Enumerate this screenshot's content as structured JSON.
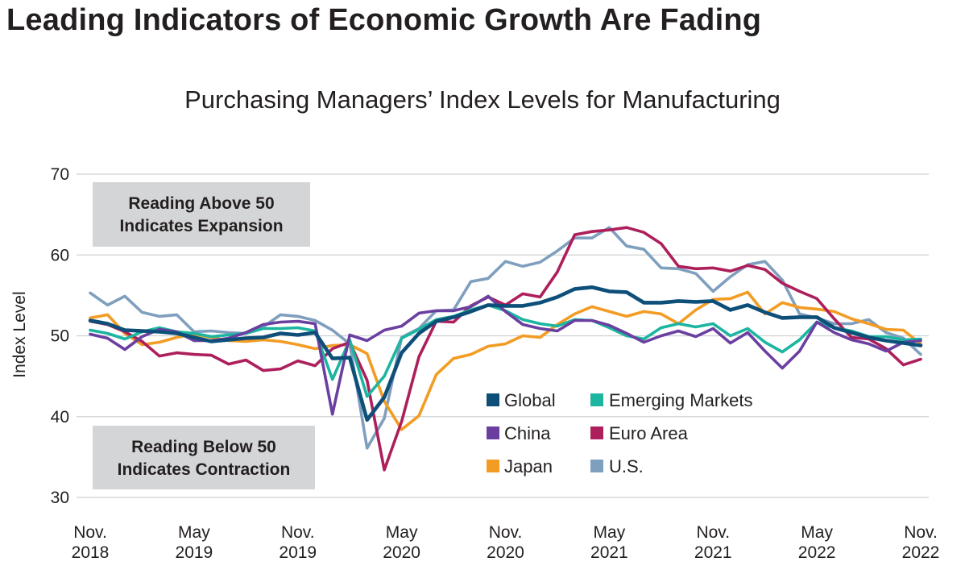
{
  "headline": "Leading Indicators of Economic Growth Are Fading",
  "chart_data": {
    "type": "line",
    "title": "Purchasing Managers’ Index Levels for Manufacturing",
    "xlabel": "",
    "ylabel": "Index Level",
    "ylim": [
      30,
      70
    ],
    "yticks": [
      30,
      40,
      50,
      60,
      70
    ],
    "grid": true,
    "x_tick_labels": [
      {
        "index": 0,
        "line1": "Nov.",
        "line2": "2018"
      },
      {
        "index": 6,
        "line1": "May",
        "line2": "2019"
      },
      {
        "index": 12,
        "line1": "Nov.",
        "line2": "2019"
      },
      {
        "index": 18,
        "line1": "May",
        "line2": "2020"
      },
      {
        "index": 24,
        "line1": "Nov.",
        "line2": "2020"
      },
      {
        "index": 30,
        "line1": "May",
        "line2": "2021"
      },
      {
        "index": 36,
        "line1": "Nov.",
        "line2": "2021"
      },
      {
        "index": 42,
        "line1": "May",
        "line2": "2022"
      },
      {
        "index": 48,
        "line1": "Nov.",
        "line2": "2022"
      }
    ],
    "annotations": {
      "above": [
        "Reading Above 50",
        "Indicates Expansion"
      ],
      "below": [
        "Reading Below 50",
        "Indicates Contraction"
      ]
    },
    "legend_position": "lower-center",
    "series": [
      {
        "name": "Global",
        "color": "#0e4f7a",
        "values": [
          51.9,
          51.5,
          50.7,
          50.6,
          50.5,
          50.3,
          49.8,
          49.3,
          49.5,
          49.7,
          49.8,
          50.3,
          50.1,
          50.4,
          47.2,
          47.3,
          39.6,
          42.4,
          47.9,
          50.3,
          51.8,
          52.3,
          53.0,
          53.8,
          53.7,
          53.7,
          54.1,
          54.8,
          55.8,
          56.0,
          55.5,
          55.4,
          54.1,
          54.1,
          54.3,
          54.2,
          54.3,
          53.2,
          53.8,
          52.9,
          52.2,
          52.3,
          52.3,
          51.0,
          50.4,
          49.8,
          49.4,
          49.1,
          48.8
        ]
      },
      {
        "name": "Emerging Markets",
        "color": "#1cb5a0",
        "values": [
          50.7,
          50.3,
          49.6,
          50.5,
          51.0,
          50.5,
          50.3,
          49.9,
          50.1,
          50.3,
          50.9,
          50.9,
          51.0,
          50.6,
          44.6,
          49.5,
          42.5,
          45.0,
          49.7,
          50.8,
          52.0,
          52.4,
          53.2,
          53.8,
          53.1,
          52.0,
          51.5,
          51.2,
          52.0,
          51.9,
          51.0,
          50.0,
          49.6,
          51.0,
          51.5,
          51.1,
          51.5,
          50.0,
          50.9,
          49.2,
          48.0,
          49.5,
          51.7,
          51.0,
          50.6,
          49.9,
          49.9,
          49.5,
          49.6
        ]
      },
      {
        "name": "China",
        "color": "#6b3fa0",
        "values": [
          50.2,
          49.7,
          48.3,
          49.9,
          50.8,
          50.5,
          49.4,
          49.4,
          49.7,
          50.4,
          51.4,
          51.7,
          51.8,
          51.5,
          40.3,
          50.1,
          49.4,
          50.7,
          51.2,
          52.8,
          53.1,
          53.1,
          53.6,
          54.9,
          53.0,
          51.4,
          50.9,
          50.6,
          51.9,
          51.9,
          51.3,
          50.3,
          49.2,
          50.0,
          50.6,
          49.9,
          50.9,
          49.1,
          50.4,
          48.1,
          46.0,
          48.1,
          51.7,
          50.4,
          49.5,
          49.0,
          48.1,
          49.2,
          49.4
        ]
      },
      {
        "name": "Euro Area",
        "color": "#ad1f5b",
        "values": [
          51.8,
          51.4,
          50.5,
          49.3,
          47.5,
          47.9,
          47.7,
          47.6,
          46.5,
          47.0,
          45.7,
          45.9,
          46.9,
          46.3,
          48.4,
          49.2,
          44.5,
          33.4,
          39.4,
          47.4,
          51.8,
          51.7,
          53.7,
          54.8,
          53.8,
          55.2,
          54.8,
          57.9,
          62.5,
          62.9,
          63.1,
          63.4,
          62.8,
          61.4,
          58.6,
          58.3,
          58.4,
          58.0,
          58.7,
          58.2,
          56.5,
          55.5,
          54.6,
          52.1,
          49.8,
          49.6,
          48.4,
          46.4,
          47.1
        ]
      },
      {
        "name": "Japan",
        "color": "#f39c24",
        "values": [
          52.2,
          52.6,
          50.3,
          48.9,
          49.2,
          49.8,
          50.2,
          49.8,
          49.4,
          49.3,
          49.5,
          49.3,
          48.9,
          48.4,
          48.8,
          48.9,
          47.8,
          41.9,
          38.4,
          40.1,
          45.2,
          47.2,
          47.7,
          48.7,
          49.0,
          50.0,
          49.8,
          51.4,
          52.7,
          53.6,
          53.0,
          52.4,
          53.0,
          52.7,
          51.5,
          53.2,
          54.5,
          54.6,
          55.4,
          52.7,
          54.1,
          53.5,
          53.3,
          53.0,
          52.1,
          51.5,
          50.8,
          50.7,
          49.0
        ]
      },
      {
        "name": "U.S.",
        "color": "#7f9fbe",
        "values": [
          55.3,
          53.8,
          54.9,
          52.9,
          52.4,
          52.6,
          50.5,
          50.6,
          50.4,
          50.3,
          51.1,
          52.6,
          52.4,
          51.9,
          50.7,
          49.0,
          36.1,
          39.8,
          49.8,
          50.9,
          53.1,
          53.2,
          56.7,
          57.1,
          59.2,
          58.6,
          59.1,
          60.5,
          62.1,
          62.1,
          63.4,
          61.1,
          60.7,
          58.4,
          58.3,
          57.7,
          55.5,
          57.3,
          58.8,
          59.2,
          56.9,
          52.7,
          52.2,
          51.5,
          51.5,
          52.0,
          50.4,
          49.7,
          47.7
        ]
      }
    ]
  }
}
